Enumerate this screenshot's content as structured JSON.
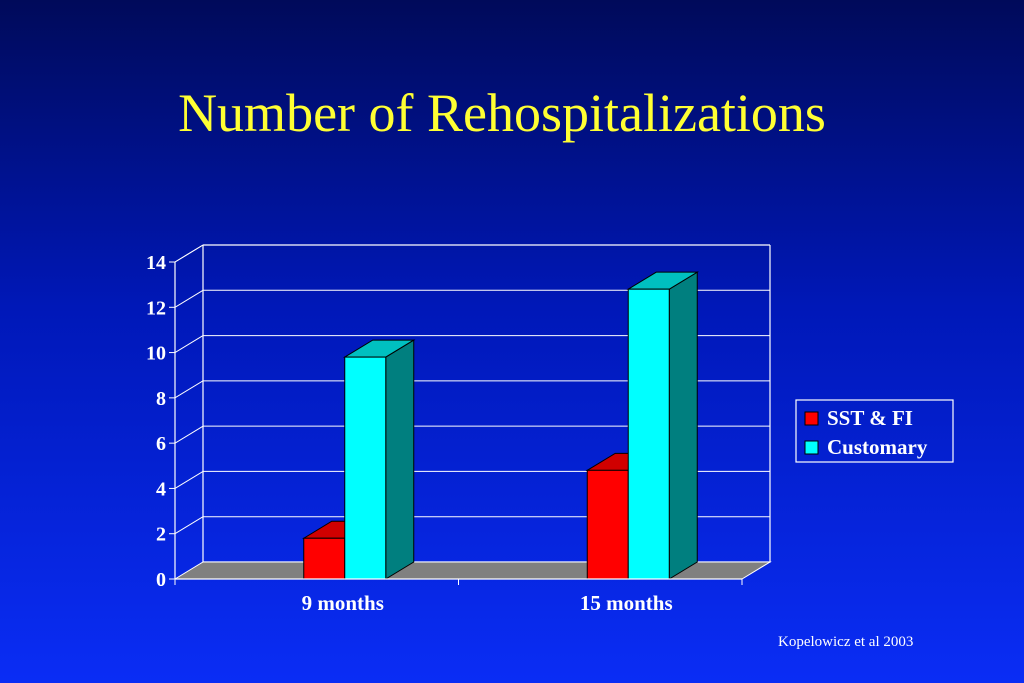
{
  "slide": {
    "title": "Number of Rehospitalizations",
    "citation": "Kopelowicz et al 2003"
  },
  "colors": {
    "background": "#0018b8",
    "title": "#ffff33",
    "series_sst_fi": "#ff0000",
    "series_customary": "#00ffff",
    "floor": "#808080"
  },
  "chart_data": {
    "type": "bar",
    "categories": [
      "9 months",
      "15 months"
    ],
    "series": [
      {
        "name": "SST & FI",
        "values": [
          1.8,
          4.8
        ],
        "color": "#ff0000",
        "side": "#b00000",
        "top": "#d00000"
      },
      {
        "name": "Customary",
        "values": [
          9.8,
          12.8
        ],
        "color": "#00ffff",
        "side": "#007f7f",
        "top": "#00c0c0"
      }
    ],
    "ylim": [
      0,
      14
    ],
    "yticks": [
      0,
      2,
      4,
      6,
      8,
      10,
      12,
      14
    ],
    "grid": true,
    "legend": "right"
  }
}
